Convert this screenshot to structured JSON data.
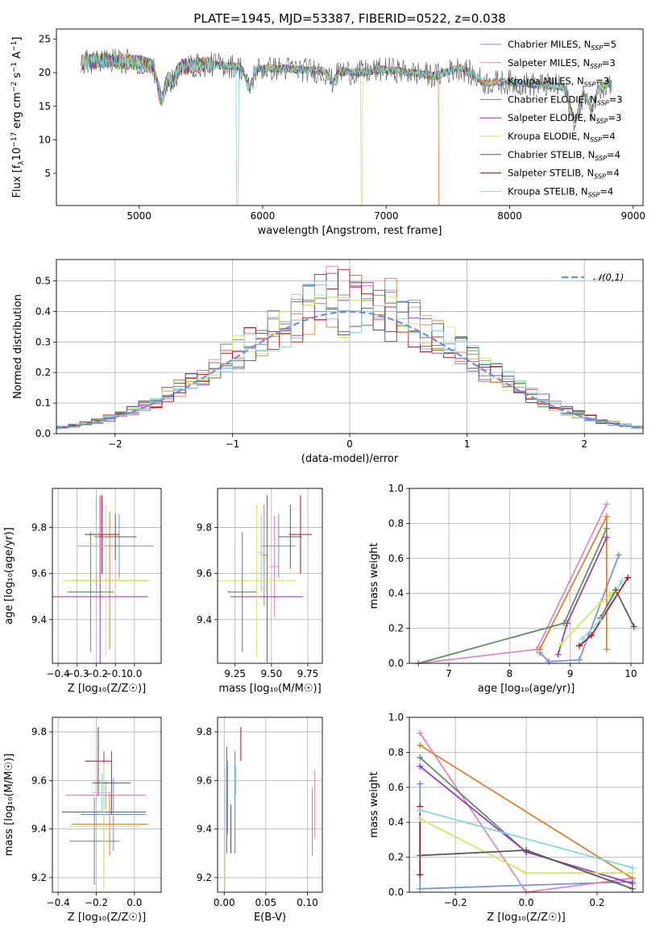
{
  "figure": {
    "title": "PLATE=1945, MJD=53387, FIBERID=0522, z=0.038"
  },
  "colors": {
    "chabrier_miles": "#6f8fe0",
    "salpeter_miles": "#e77fbf",
    "kroupa_miles": "#e07a28",
    "chabrier_elodie": "#5e8a5e",
    "salpeter_elodie": "#9a35b5",
    "kroupa_elodie": "#cde65a",
    "chabrier_stelib": "#555555",
    "salpeter_stelib": "#b31212",
    "kroupa_stelib": "#7fd8dc",
    "gauss": "#6a8ee0"
  },
  "chart_data": [
    {
      "id": "spectrum",
      "type": "line",
      "xlabel": "wavelength [Angstrom, rest frame]",
      "ylabel": "Flux [f_λ 10^-17 erg cm^-2 s^-1 A^-1]",
      "xlim": [
        4330,
        9080
      ],
      "ylim": [
        0.2,
        26.5
      ],
      "xticks": [
        5000,
        6000,
        7000,
        8000,
        9000
      ],
      "yticks": [
        5,
        10,
        15,
        20,
        25
      ],
      "grid": false,
      "legend_position": "top-right",
      "series": [
        {
          "name": "Chabrier MILES, N_SSP=5",
          "color_key": "chabrier_miles"
        },
        {
          "name": "Salpeter MILES, N_SSP=3",
          "color_key": "salpeter_miles"
        },
        {
          "name": "Kroupa MILES, N_SSP=3",
          "color_key": "kroupa_miles"
        },
        {
          "name": "Chabrier ELODIE, N_SSP=3",
          "color_key": "chabrier_elodie"
        },
        {
          "name": "Salpeter ELODIE, N_SSP=3",
          "color_key": "salpeter_elodie"
        },
        {
          "name": "Kroupa ELODIE, N_SSP=4",
          "color_key": "kroupa_elodie"
        },
        {
          "name": "Chabrier STELIB, N_SSP=4",
          "color_key": "chabrier_stelib"
        },
        {
          "name": "Salpeter STELIB, N_SSP=4",
          "color_key": "salpeter_stelib"
        },
        {
          "name": "Kroupa STELIB, N_SSP=4",
          "color_key": "kroupa_stelib"
        }
      ],
      "continuum": [
        [
          4520,
          21.5
        ],
        [
          4700,
          21.8
        ],
        [
          5000,
          21.5
        ],
        [
          5200,
          20.5
        ],
        [
          5400,
          21.0
        ],
        [
          5600,
          21.2
        ],
        [
          5800,
          20.9
        ],
        [
          6000,
          20.6
        ],
        [
          6200,
          20.6
        ],
        [
          6400,
          20.3
        ],
        [
          6600,
          20.2
        ],
        [
          6800,
          20.0
        ],
        [
          7000,
          20.5
        ],
        [
          7200,
          20.0
        ],
        [
          7400,
          19.5
        ],
        [
          7600,
          20.8
        ],
        [
          7800,
          18.5
        ],
        [
          8000,
          18.6
        ],
        [
          8200,
          18.2
        ],
        [
          8400,
          18.0
        ],
        [
          8600,
          17.3
        ],
        [
          8830,
          18.5
        ]
      ],
      "features": [
        [
          5180,
          -4.5
        ],
        [
          5270,
          -2
        ],
        [
          5890,
          -3
        ],
        [
          6563,
          -1.5
        ],
        [
          8498,
          -2.5
        ],
        [
          8542,
          -3.5
        ],
        [
          8662,
          -3.0
        ]
      ],
      "dropouts": [
        {
          "color_key": "kroupa_stelib",
          "x": 5795
        },
        {
          "color_key": "kroupa_elodie",
          "x": 6800
        },
        {
          "color_key": "kroupa_miles",
          "x": 7430
        }
      ]
    },
    {
      "id": "residual_hist",
      "type": "bar",
      "xlabel": "(data-model)/error",
      "ylabel": "Normed distribution",
      "xlim": [
        -2.5,
        2.5
      ],
      "ylim": [
        0,
        0.57
      ],
      "xticks": [
        -2,
        -1,
        0,
        1,
        2
      ],
      "yticks": [
        0.0,
        0.1,
        0.2,
        0.3,
        0.4,
        0.5
      ],
      "grid": true,
      "legend_position": "top-right",
      "reference": {
        "name": "𝒩(0,1)",
        "mean": 0,
        "sd": 1,
        "color_key": "gauss"
      },
      "bins": {
        "start": -2.5,
        "width": 0.1,
        "count": 50
      },
      "series_color_keys": [
        "chabrier_miles",
        "salpeter_miles",
        "kroupa_miles",
        "chabrier_elodie",
        "salpeter_elodie",
        "kroupa_elodie",
        "chabrier_stelib",
        "salpeter_stelib",
        "kroupa_stelib"
      ]
    },
    {
      "id": "age_vs_Z",
      "type": "scatter",
      "xlabel": "Z [log₁₀(Z/Z☉)]",
      "ylabel": "age  [log₁₀(age/yr)]",
      "xlim": [
        -0.43,
        0.14
      ],
      "ylim": [
        9.21,
        9.97
      ],
      "xticks": [
        -0.4,
        -0.3,
        -0.2,
        -0.1,
        0.0
      ],
      "yticks": [
        9.4,
        9.6,
        9.8
      ],
      "grid": true,
      "points": [
        {
          "color_key": "chabrier_miles",
          "x": -0.08,
          "y": 9.72,
          "xerr": 0.18,
          "yerr": 0.14
        },
        {
          "color_key": "salpeter_miles",
          "x": -0.2,
          "y": 9.72,
          "xerr": 0.1,
          "yerr": 0.2
        },
        {
          "color_key": "kroupa_miles",
          "x": -0.13,
          "y": 9.57,
          "xerr": 0.2,
          "yerr": 0.3
        },
        {
          "color_key": "chabrier_elodie",
          "x": -0.23,
          "y": 9.52,
          "xerr": 0.12,
          "yerr": 0.26
        },
        {
          "color_key": "salpeter_elodie",
          "x": -0.18,
          "y": 9.5,
          "xerr": 0.25,
          "yerr": 0.44
        },
        {
          "color_key": "kroupa_elodie",
          "x": -0.15,
          "y": 9.57,
          "xerr": 0.23,
          "yerr": 0.33
        },
        {
          "color_key": "chabrier_stelib",
          "x": -0.1,
          "y": 9.76,
          "xerr": 0.11,
          "yerr": 0.1
        },
        {
          "color_key": "salpeter_stelib",
          "x": -0.17,
          "y": 9.77,
          "xerr": 0.09,
          "yerr": 0.17
        },
        {
          "color_key": "kroupa_stelib",
          "x": -0.2,
          "y": 9.72,
          "xerr": 0.05,
          "yerr": 0.12
        }
      ]
    },
    {
      "id": "age_vs_mass",
      "type": "scatter",
      "xlabel": "mass [log₁₀(M/M☉)]",
      "ylabel": "",
      "xlim": [
        9.13,
        9.85
      ],
      "ylim": [
        9.21,
        9.97
      ],
      "xticks": [
        9.25,
        9.5,
        9.75
      ],
      "yticks": [
        9.4,
        9.6,
        9.8
      ],
      "grid": true,
      "points": [
        {
          "color_key": "chabrier_miles",
          "x": 9.55,
          "y": 9.72,
          "xerr": 0.12,
          "yerr": 0.14
        },
        {
          "color_key": "salpeter_miles",
          "x": 9.52,
          "y": 9.63,
          "xerr": 0.03,
          "yerr": 0.22
        },
        {
          "color_key": "kroupa_miles",
          "x": 9.45,
          "y": 9.68,
          "xerr": 0.02,
          "yerr": 0.22
        },
        {
          "color_key": "chabrier_elodie",
          "x": 9.3,
          "y": 9.52,
          "xerr": 0.1,
          "yerr": 0.26
        },
        {
          "color_key": "salpeter_elodie",
          "x": 9.47,
          "y": 9.5,
          "xerr": 0.25,
          "yerr": 0.44
        },
        {
          "color_key": "kroupa_elodie",
          "x": 9.4,
          "y": 9.57,
          "xerr": 0.27,
          "yerr": 0.33
        },
        {
          "color_key": "chabrier_stelib",
          "x": 9.63,
          "y": 9.76,
          "xerr": 0.08,
          "yerr": 0.14
        },
        {
          "color_key": "salpeter_stelib",
          "x": 9.7,
          "y": 9.77,
          "xerr": 0.08,
          "yerr": 0.17
        },
        {
          "color_key": "kroupa_stelib",
          "x": 9.43,
          "y": 9.69,
          "xerr": 0.02,
          "yerr": 0.17
        }
      ]
    },
    {
      "id": "weight_vs_age",
      "type": "line",
      "xlabel": "age  [log₁₀(age/yr)]",
      "ylabel": "mass weight",
      "xlim": [
        6.35,
        10.2
      ],
      "ylim": [
        0,
        1
      ],
      "xticks": [
        7,
        8,
        9,
        10
      ],
      "yticks": [
        0.0,
        0.2,
        0.4,
        0.6,
        0.8,
        1.0
      ],
      "grid": true,
      "series": [
        {
          "color_key": "chabrier_miles",
          "points": [
            [
              8.5,
              0.06
            ],
            [
              8.65,
              0.01
            ],
            [
              9.15,
              0.02
            ],
            [
              9.8,
              0.62
            ]
          ]
        },
        {
          "color_key": "salpeter_miles",
          "points": [
            [
              6.5,
              0
            ],
            [
              8.45,
              0.08
            ],
            [
              9.6,
              0.91
            ]
          ]
        },
        {
          "color_key": "kroupa_miles",
          "points": [
            [
              8.5,
              0.08
            ],
            [
              9.6,
              0.84
            ],
            [
              9.6,
              0.08
            ]
          ]
        },
        {
          "color_key": "chabrier_elodie",
          "points": [
            [
              6.5,
              0
            ],
            [
              8.9,
              0.23
            ],
            [
              9.6,
              0.77
            ]
          ]
        },
        {
          "color_key": "salpeter_elodie",
          "points": [
            [
              8.8,
              0.05
            ],
            [
              8.95,
              0.23
            ],
            [
              9.6,
              0.72
            ]
          ]
        },
        {
          "color_key": "kroupa_elodie",
          "points": [
            [
              8.85,
              0.11
            ],
            [
              9.5,
              0.35
            ],
            [
              9.75,
              0.41
            ],
            [
              9.65,
              0.4
            ]
          ]
        },
        {
          "color_key": "chabrier_stelib",
          "points": [
            [
              9.5,
              0.26
            ],
            [
              9.75,
              0.42
            ],
            [
              10.05,
              0.21
            ]
          ]
        },
        {
          "color_key": "salpeter_stelib",
          "points": [
            [
              9.15,
              0.1
            ],
            [
              9.35,
              0.16
            ],
            [
              9.95,
              0.49
            ]
          ]
        },
        {
          "color_key": "kroupa_stelib",
          "points": [
            [
              9.2,
              0.14
            ],
            [
              9.5,
              0.25
            ],
            [
              9.85,
              0.47
            ]
          ]
        }
      ]
    },
    {
      "id": "mass_vs_Z",
      "type": "scatter",
      "xlabel": "Z [log₁₀(Z/Z☉)]",
      "ylabel": "mass [log₁₀(M/M☉)]",
      "xlim": [
        -0.43,
        0.14
      ],
      "ylim": [
        9.14,
        9.86
      ],
      "xticks": [
        -0.4,
        -0.2,
        0.0
      ],
      "yticks": [
        9.2,
        9.4,
        9.6,
        9.8
      ],
      "grid": true,
      "points": [
        {
          "color_key": "chabrier_miles",
          "x": -0.11,
          "y": 9.46,
          "xerr": 0.17,
          "yerr": 0.15
        },
        {
          "color_key": "salpeter_miles",
          "x": -0.15,
          "y": 9.54,
          "xerr": 0.21,
          "yerr": 0.06
        },
        {
          "color_key": "kroupa_miles",
          "x": -0.13,
          "y": 9.42,
          "xerr": 0.2,
          "yerr": 0.13
        },
        {
          "color_key": "chabrier_elodie",
          "x": -0.21,
          "y": 9.35,
          "xerr": 0.13,
          "yerr": 0.18
        },
        {
          "color_key": "salpeter_elodie",
          "x": -0.16,
          "y": 9.47,
          "xerr": 0.22,
          "yerr": 0.25
        },
        {
          "color_key": "kroupa_elodie",
          "x": -0.16,
          "y": 9.41,
          "xerr": 0.19,
          "yerr": 0.26
        },
        {
          "color_key": "chabrier_stelib",
          "x": -0.12,
          "y": 9.59,
          "xerr": 0.1,
          "yerr": 0.13
        },
        {
          "color_key": "salpeter_stelib",
          "x": -0.19,
          "y": 9.68,
          "xerr": 0.07,
          "yerr": 0.14
        },
        {
          "color_key": "kroupa_stelib",
          "x": -0.17,
          "y": 9.55,
          "xerr": 0.05,
          "yerr": 0.08
        }
      ]
    },
    {
      "id": "mass_vs_ebv",
      "type": "scatter",
      "xlabel": "E(B-V)",
      "ylabel": "",
      "xlim": [
        -0.008,
        0.118
      ],
      "ylim": [
        9.14,
        9.86
      ],
      "xticks": [
        0.0,
        0.05,
        0.1
      ],
      "yticks": [
        9.2,
        9.4,
        9.6,
        9.8
      ],
      "grid": true,
      "points": [
        {
          "color_key": "chabrier_miles",
          "x": 0.004,
          "y": 9.53,
          "yerr": 0.15
        },
        {
          "color_key": "salpeter_miles",
          "x": 0.109,
          "y": 9.5,
          "yerr": 0.14
        },
        {
          "color_key": "kroupa_miles",
          "x": 0.106,
          "y": 9.43,
          "yerr": 0.14
        },
        {
          "color_key": "chabrier_elodie",
          "x": 0.013,
          "y": 9.51,
          "yerr": 0.21
        },
        {
          "color_key": "salpeter_elodie",
          "x": 0.003,
          "y": 9.52,
          "yerr": 0.22
        },
        {
          "color_key": "kroupa_elodie",
          "x": 0.001,
          "y": 9.4,
          "yerr": 0.25
        },
        {
          "color_key": "chabrier_stelib",
          "x": 0.008,
          "y": 9.4,
          "yerr": 0.1
        },
        {
          "color_key": "salpeter_stelib",
          "x": 0.02,
          "y": 9.75,
          "yerr": 0.07
        },
        {
          "color_key": "kroupa_stelib",
          "x": 0.014,
          "y": 9.6,
          "yerr": 0.06
        }
      ]
    },
    {
      "id": "weight_vs_Z",
      "type": "line",
      "xlabel": "Z [log₁₀(Z/Z☉)]",
      "ylabel": "mass weight",
      "xlim": [
        -0.33,
        0.33
      ],
      "ylim": [
        0,
        1
      ],
      "xticks": [
        -0.2,
        0.0,
        0.2
      ],
      "yticks": [
        0.0,
        0.2,
        0.4,
        0.6,
        0.8,
        1.0
      ],
      "grid": true,
      "series": [
        {
          "color_key": "chabrier_miles",
          "points": [
            [
              -0.3,
              0.62
            ],
            [
              -0.3,
              0.02
            ],
            [
              0.3,
              0.06
            ]
          ]
        },
        {
          "color_key": "salpeter_miles",
          "points": [
            [
              -0.3,
              0.91
            ],
            [
              0,
              0
            ],
            [
              0.3,
              0.08
            ]
          ]
        },
        {
          "color_key": "kroupa_miles",
          "points": [
            [
              -0.3,
              0.84
            ],
            [
              0.3,
              0.08
            ]
          ]
        },
        {
          "color_key": "chabrier_elodie",
          "points": [
            [
              -0.3,
              0.77
            ],
            [
              0,
              0.23
            ]
          ]
        },
        {
          "color_key": "salpeter_elodie",
          "points": [
            [
              -0.3,
              0.72
            ],
            [
              0,
              0.23
            ],
            [
              0.3,
              0.05
            ]
          ]
        },
        {
          "color_key": "kroupa_elodie",
          "points": [
            [
              -0.3,
              0.42
            ],
            [
              0,
              0.11
            ],
            [
              0.3,
              0.11
            ]
          ]
        },
        {
          "color_key": "chabrier_stelib",
          "points": [
            [
              -0.3,
              0.21
            ],
            [
              0,
              0.24
            ],
            [
              0.3,
              0.02
            ]
          ]
        },
        {
          "color_key": "salpeter_stelib",
          "points": [
            [
              -0.3,
              0.49
            ],
            [
              -0.3,
              0.1
            ]
          ]
        },
        {
          "color_key": "kroupa_stelib",
          "points": [
            [
              -0.3,
              0.47
            ],
            [
              0.3,
              0.14
            ]
          ]
        }
      ]
    }
  ]
}
